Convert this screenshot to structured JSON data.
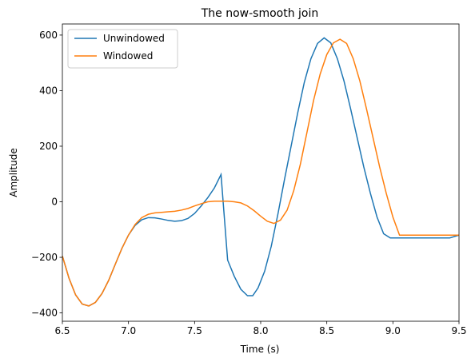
{
  "chart_data": {
    "type": "line",
    "title": "The now-smooth join",
    "xlabel": "Time (s)",
    "ylabel": "Amplitude",
    "xlim": [
      6.5,
      9.5
    ],
    "ylim": [
      -430,
      640
    ],
    "xticks": [
      6.5,
      7.0,
      7.5,
      8.0,
      8.5,
      9.0,
      9.5
    ],
    "xtick_labels": [
      "6.5",
      "7.0",
      "7.5",
      "8.0",
      "8.5",
      "9.0",
      "9.5"
    ],
    "yticks": [
      -400,
      -200,
      0,
      200,
      400,
      600
    ],
    "ytick_labels": [
      "−400",
      "−200",
      "0",
      "200",
      "400",
      "600"
    ],
    "grid": false,
    "legend_position": "top-left",
    "series": [
      {
        "name": "Unwindowed",
        "color": "#1f77b4",
        "x": [
          6.5,
          6.55,
          6.6,
          6.65,
          6.7,
          6.75,
          6.8,
          6.85,
          6.9,
          6.95,
          7.0,
          7.05,
          7.1,
          7.15,
          7.2,
          7.25,
          7.3,
          7.35,
          7.4,
          7.45,
          7.5,
          7.55,
          7.6,
          7.65,
          7.7,
          7.75,
          7.8,
          7.85,
          7.9,
          7.94,
          7.98,
          8.03,
          8.08,
          8.13,
          8.18,
          8.23,
          8.28,
          8.33,
          8.38,
          8.43,
          8.48,
          8.53,
          8.58,
          8.63,
          8.68,
          8.73,
          8.78,
          8.83,
          8.88,
          8.93,
          8.98,
          9.03,
          9.08,
          9.13,
          9.18,
          9.23,
          9.28,
          9.33,
          9.38,
          9.43,
          9.5
        ],
        "y": [
          -195,
          -275,
          -335,
          -368,
          -375,
          -362,
          -330,
          -283,
          -225,
          -168,
          -120,
          -85,
          -65,
          -57,
          -58,
          -62,
          -67,
          -70,
          -68,
          -60,
          -42,
          -15,
          15,
          50,
          98,
          -210,
          -268,
          -315,
          -338,
          -338,
          -310,
          -250,
          -160,
          -45,
          80,
          200,
          320,
          430,
          515,
          570,
          590,
          572,
          515,
          435,
          335,
          230,
          125,
          30,
          -55,
          -115,
          -130,
          -130,
          -130,
          -130,
          -130,
          -130,
          -130,
          -130,
          -130,
          -130,
          -120
        ]
      },
      {
        "name": "Windowed",
        "color": "#ff7f0e",
        "x": [
          6.5,
          6.55,
          6.6,
          6.65,
          6.7,
          6.75,
          6.8,
          6.85,
          6.9,
          6.95,
          7.0,
          7.05,
          7.1,
          7.15,
          7.2,
          7.25,
          7.3,
          7.35,
          7.4,
          7.45,
          7.5,
          7.55,
          7.6,
          7.65,
          7.7,
          7.75,
          7.8,
          7.85,
          7.9,
          7.95,
          8.0,
          8.05,
          8.1,
          8.15,
          8.2,
          8.25,
          8.3,
          8.35,
          8.4,
          8.45,
          8.5,
          8.55,
          8.6,
          8.65,
          8.7,
          8.75,
          8.8,
          8.85,
          8.9,
          8.95,
          9.0,
          9.05,
          9.1,
          9.15,
          9.2,
          9.25,
          9.3,
          9.35,
          9.4,
          9.45,
          9.5
        ],
        "y": [
          -195,
          -275,
          -335,
          -368,
          -375,
          -362,
          -330,
          -283,
          -225,
          -168,
          -120,
          -82,
          -57,
          -45,
          -40,
          -38,
          -36,
          -34,
          -30,
          -24,
          -15,
          -7,
          0,
          2,
          2,
          2,
          0,
          -4,
          -15,
          -32,
          -52,
          -70,
          -78,
          -66,
          -30,
          40,
          135,
          250,
          365,
          460,
          530,
          572,
          585,
          570,
          515,
          435,
          335,
          230,
          125,
          30,
          -55,
          -120,
          -120,
          -120,
          -120,
          -120,
          -120,
          -120,
          -120,
          -120,
          -120
        ]
      }
    ]
  }
}
